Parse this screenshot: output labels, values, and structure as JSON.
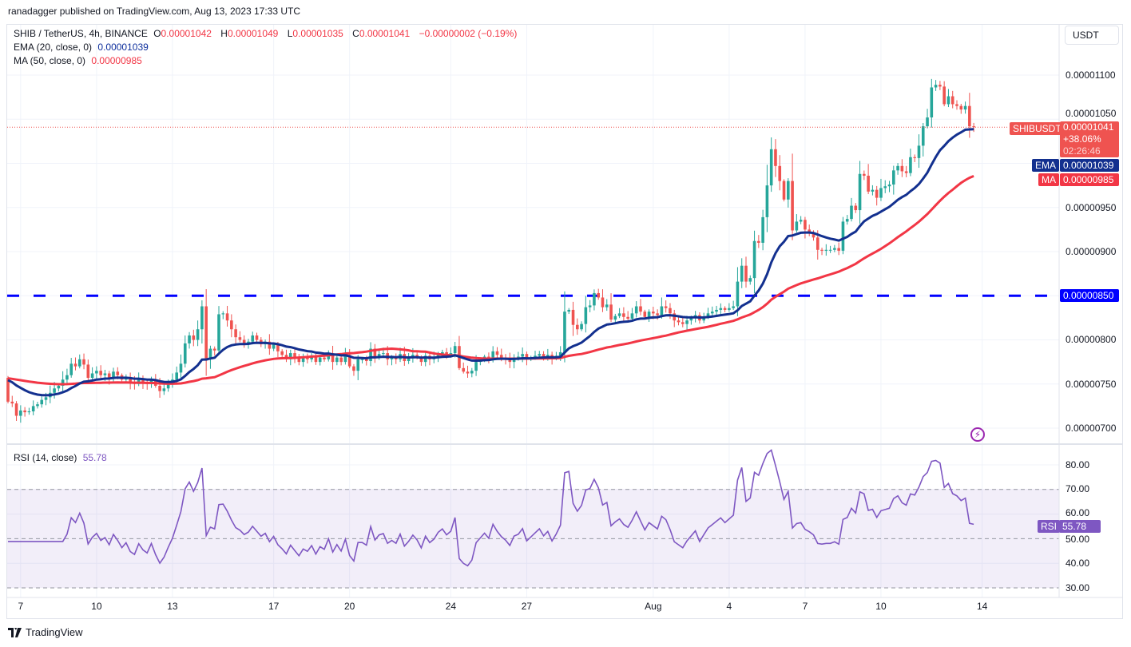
{
  "publisher_line": "ranadagger published on TradingView.com, Aug 13, 2023 17:33 UTC",
  "legend": {
    "symbol": "SHIB / TetherUS, 4h, BINANCE",
    "o_label": "O",
    "open": "0.00001042",
    "h_label": "H",
    "high": "0.00001049",
    "l_label": "L",
    "low": "0.00001035",
    "c_label": "C",
    "close": "0.00001041",
    "change": "−0.00000002 (−0.19%)",
    "ema_label": "EMA (20, close, 0)",
    "ema_value": "0.00001039",
    "ma_label": "MA (50, close, 0)",
    "ma_value": "0.00000985",
    "rsi_label": "RSI (14, close)",
    "rsi_value": "55.78"
  },
  "axis": {
    "currency": "USDT",
    "price_ticks": [
      "0.00001100",
      "0.00000950",
      "0.00000900",
      "0.00000800",
      "0.00000750",
      "0.00000700"
    ],
    "rsi_ticks": [
      "80.00",
      "70.00",
      "60.00",
      "50.00",
      "40.00",
      "30.00"
    ],
    "x_ticks": [
      {
        "label": "7",
        "date": "2023-07-07"
      },
      {
        "label": "10",
        "date": "2023-07-10"
      },
      {
        "label": "13",
        "date": "2023-07-13"
      },
      {
        "label": "17",
        "date": "2023-07-17"
      },
      {
        "label": "20",
        "date": "2023-07-20"
      },
      {
        "label": "24",
        "date": "2023-07-24"
      },
      {
        "label": "27",
        "date": "2023-07-27"
      },
      {
        "label": "Aug",
        "date": "2023-08-01"
      },
      {
        "label": "4",
        "date": "2023-08-04"
      },
      {
        "label": "7",
        "date": "2023-08-07"
      },
      {
        "label": "10",
        "date": "2023-08-10"
      },
      {
        "label": "14",
        "date": "2023-08-14"
      }
    ]
  },
  "tags": {
    "symbol_tag": "SHIBUSDT",
    "last_price": "0.00001041",
    "pct_change": "+38.06%",
    "countdown": "02:26:46",
    "ema_tag": "EMA",
    "ema_price": "0.00001039",
    "ma_tag": "MA",
    "ma_price": "0.00000985",
    "level_price": "0.00000850",
    "rsi_tag": "RSI",
    "rsi_value": "55.78"
  },
  "branding": {
    "logo_text": "TradingView"
  },
  "colors": {
    "up": "#26a69a",
    "down": "#ef5350",
    "ema": "#13308f",
    "ma": "#f23645",
    "rsi": "#7e57c2",
    "level": "#0000ff"
  },
  "chart_data": {
    "type": "candlestick",
    "interval": "4h",
    "ylim": [
      6.8e-06,
      1.14e-05
    ],
    "rsi_levels": [
      30,
      50,
      70
    ],
    "rsi_ylim": [
      27,
      87
    ],
    "horizontal_level": 8.5e-06,
    "first_open": 7.57e-06,
    "indicators": [
      "EMA 20",
      "MA 50",
      "RSI 14"
    ],
    "closes": [
      7.3e-06,
      7.28e-06,
      7.14e-06,
      7.2e-06,
      7.18e-06,
      7.19e-06,
      7.25e-06,
      7.27e-06,
      7.32e-06,
      7.35e-06,
      7.4e-06,
      7.45e-06,
      7.48e-06,
      7.55e-06,
      7.6e-06,
      7.73e-06,
      7.7e-06,
      7.78e-06,
      7.72e-06,
      7.57e-06,
      7.62e-06,
      7.65e-06,
      7.6e-06,
      7.62e-06,
      7.57e-06,
      7.64e-06,
      7.6e-06,
      7.55e-06,
      7.58e-06,
      7.52e-06,
      7.5e-06,
      7.56e-06,
      7.52e-06,
      7.5e-06,
      7.55e-06,
      7.48e-06,
      7.42e-06,
      7.45e-06,
      7.5e-06,
      7.55e-06,
      7.63e-06,
      7.73e-06,
      7.96e-06,
      8.05e-06,
      8e-06,
      8.12e-06,
      8.38e-06,
      7.78e-06,
      7.9e-06,
      7.88e-06,
      8.29e-06,
      8.3e-06,
      8.22e-06,
      8.12e-06,
      8.03e-06,
      8e-06,
      7.95e-06,
      7.98e-06,
      8.05e-06,
      8e-06,
      7.95e-06,
      7.98e-06,
      7.9e-06,
      7.95e-06,
      7.87e-06,
      7.83e-06,
      7.78e-06,
      7.85e-06,
      7.8e-06,
      7.75e-06,
      7.8e-06,
      7.78e-06,
      7.82e-06,
      7.75e-06,
      7.8e-06,
      7.78e-06,
      7.85e-06,
      7.75e-06,
      7.8e-06,
      7.75e-06,
      7.83e-06,
      7.7e-06,
      7.65e-06,
      7.78e-06,
      7.78e-06,
      7.76e-06,
      7.9e-06,
      7.8e-06,
      7.84e-06,
      7.85e-06,
      7.78e-06,
      7.8e-06,
      7.78e-06,
      7.84e-06,
      7.76e-06,
      7.79e-06,
      7.83e-06,
      7.8e-06,
      7.75e-06,
      7.82e-06,
      7.78e-06,
      7.8e-06,
      7.84e-06,
      7.86e-06,
      7.83e-06,
      7.85e-06,
      7.93e-06,
      7.68e-06,
      7.64e-06,
      7.62e-06,
      7.65e-06,
      7.75e-06,
      7.78e-06,
      7.81e-06,
      7.78e-06,
      7.87e-06,
      7.83e-06,
      7.8e-06,
      7.78e-06,
      7.75e-06,
      7.8e-06,
      7.81e-06,
      7.84e-06,
      7.78e-06,
      7.8e-06,
      7.82e-06,
      7.84e-06,
      7.81e-06,
      7.83e-06,
      7.79e-06,
      7.82e-06,
      7.86e-06,
      8.32e-06,
      8.34e-06,
      8.17e-06,
      8.12e-06,
      8.18e-06,
      8.37e-06,
      8.39e-06,
      8.53e-06,
      8.48e-06,
      8.37e-06,
      8.4e-06,
      8.23e-06,
      8.27e-06,
      8.3e-06,
      8.26e-06,
      8.24e-06,
      8.3e-06,
      8.38e-06,
      8.32e-06,
      8.26e-06,
      8.32e-06,
      8.3e-06,
      8.28e-06,
      8.38e-06,
      8.36e-06,
      8.3e-06,
      8.22e-06,
      8.2e-06,
      8.18e-06,
      8.22e-06,
      8.25e-06,
      8.28e-06,
      8.22e-06,
      8.26e-06,
      8.3e-06,
      8.32e-06,
      8.34e-06,
      8.36e-06,
      8.34e-06,
      8.36e-06,
      8.38e-06,
      8.66e-06,
      8.84e-06,
      8.66e-06,
      8.7e-06,
      9.12e-06,
      9.1e-06,
      9.39e-06,
      9.75e-06,
      1.016e-05,
      9.97e-06,
      9.8e-06,
      9.59e-06,
      9.8e-06,
      9.24e-06,
      9.34e-06,
      9.36e-06,
      9.25e-06,
      9.21e-06,
      9.16e-06,
      9.02e-06,
      9.01e-06,
      9.02e-06,
      9.02e-06,
      9.04e-06,
      9.01e-06,
      9.34e-06,
      9.37e-06,
      9.52e-06,
      9.47e-06,
      9.88e-06,
      9.86e-06,
      9.68e-06,
      9.7e-06,
      9.61e-06,
      9.72e-06,
      9.74e-06,
      9.76e-06,
      9.92e-06,
      9.97e-06,
      9.91e-06,
      9.89e-06,
      1.007e-05,
      1.006e-05,
      1.02e-05,
      1.042e-05,
      1.052e-05,
      1.086e-05,
      1.089e-05,
      1.087e-05,
      1.067e-05,
      1.076e-05,
      1.067e-05,
      1.065e-05,
      1.061e-05,
      1.065e-05,
      1.042e-05,
      1.041e-05
    ]
  }
}
